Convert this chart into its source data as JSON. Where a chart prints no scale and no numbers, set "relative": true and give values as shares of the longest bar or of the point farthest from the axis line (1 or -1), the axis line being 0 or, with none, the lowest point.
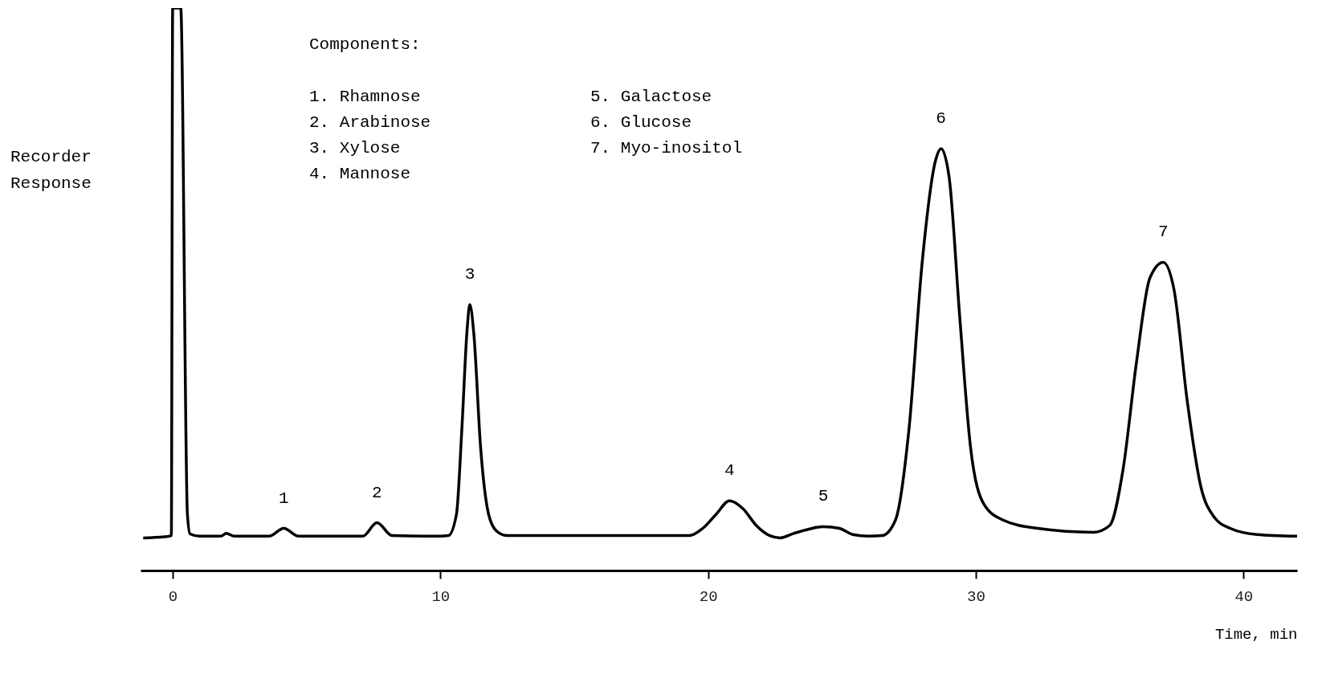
{
  "chart_data": {
    "type": "line",
    "relative": true,
    "xlabel": "Time, min",
    "ylabel": "Recorder Response",
    "xlim": [
      -1.2,
      42
    ],
    "xticks": [
      0,
      10,
      20,
      30,
      40
    ],
    "series": [
      {
        "color": "#000000",
        "x": [
          -1.1,
          -0.3,
          -0.05,
          0.0,
          0.3,
          0.55,
          0.65,
          1.0,
          1.8,
          2.0,
          2.3,
          3.6,
          4.15,
          4.7,
          7.1,
          7.63,
          8.2,
          10.0,
          10.3,
          10.6,
          10.8,
          11.0,
          11.1,
          11.25,
          11.5,
          11.8,
          12.1,
          12.5,
          19.3,
          19.8,
          20.3,
          20.8,
          21.3,
          21.8,
          22.3,
          22.7,
          23.2,
          23.8,
          24.3,
          24.9,
          25.4,
          26.0,
          26.5,
          27.0,
          27.5,
          28.0,
          28.5,
          28.7,
          29.0,
          29.4,
          29.8,
          30.3,
          31.0,
          32.3,
          34.4,
          35.0,
          35.5,
          36.0,
          36.5,
          37.0,
          37.4,
          37.9,
          38.4,
          38.9,
          39.5,
          40.5,
          42.0
        ],
        "values": [
          0.058,
          0.06,
          0.062,
          1,
          1,
          0.1,
          0.065,
          0.061,
          0.061,
          0.066,
          0.061,
          0.061,
          0.075,
          0.061,
          0.061,
          0.085,
          0.062,
          0.061,
          0.062,
          0.1,
          0.25,
          0.43,
          0.473,
          0.42,
          0.22,
          0.1,
          0.07,
          0.062,
          0.062,
          0.075,
          0.1,
          0.124,
          0.11,
          0.08,
          0.062,
          0.058,
          0.066,
          0.074,
          0.078,
          0.075,
          0.064,
          0.061,
          0.062,
          0.09,
          0.25,
          0.55,
          0.73,
          0.75,
          0.7,
          0.45,
          0.22,
          0.118,
          0.09,
          0.075,
          0.068,
          0.08,
          0.18,
          0.37,
          0.52,
          0.548,
          0.5,
          0.3,
          0.15,
          0.095,
          0.075,
          0.064,
          0.061
        ]
      }
    ],
    "annotations": [
      {
        "text": "1",
        "x": 4.15,
        "y": 0.075
      },
      {
        "text": "2",
        "x": 7.63,
        "y": 0.085
      },
      {
        "text": "3",
        "x": 11.1,
        "y": 0.473
      },
      {
        "text": "4",
        "x": 20.8,
        "y": 0.124
      },
      {
        "text": "5",
        "x": 24.3,
        "y": 0.078
      },
      {
        "text": "6",
        "x": 28.7,
        "y": 0.75
      },
      {
        "text": "7",
        "x": 37.0,
        "y": 0.548
      },
      "Components:",
      "1.  Rhamnose",
      "2.  Arabinose",
      "3.  Xylose",
      "4.  Mannose",
      "5.  Galactose",
      "6.  Glucose",
      "7.  Myo-inositol"
    ]
  }
}
